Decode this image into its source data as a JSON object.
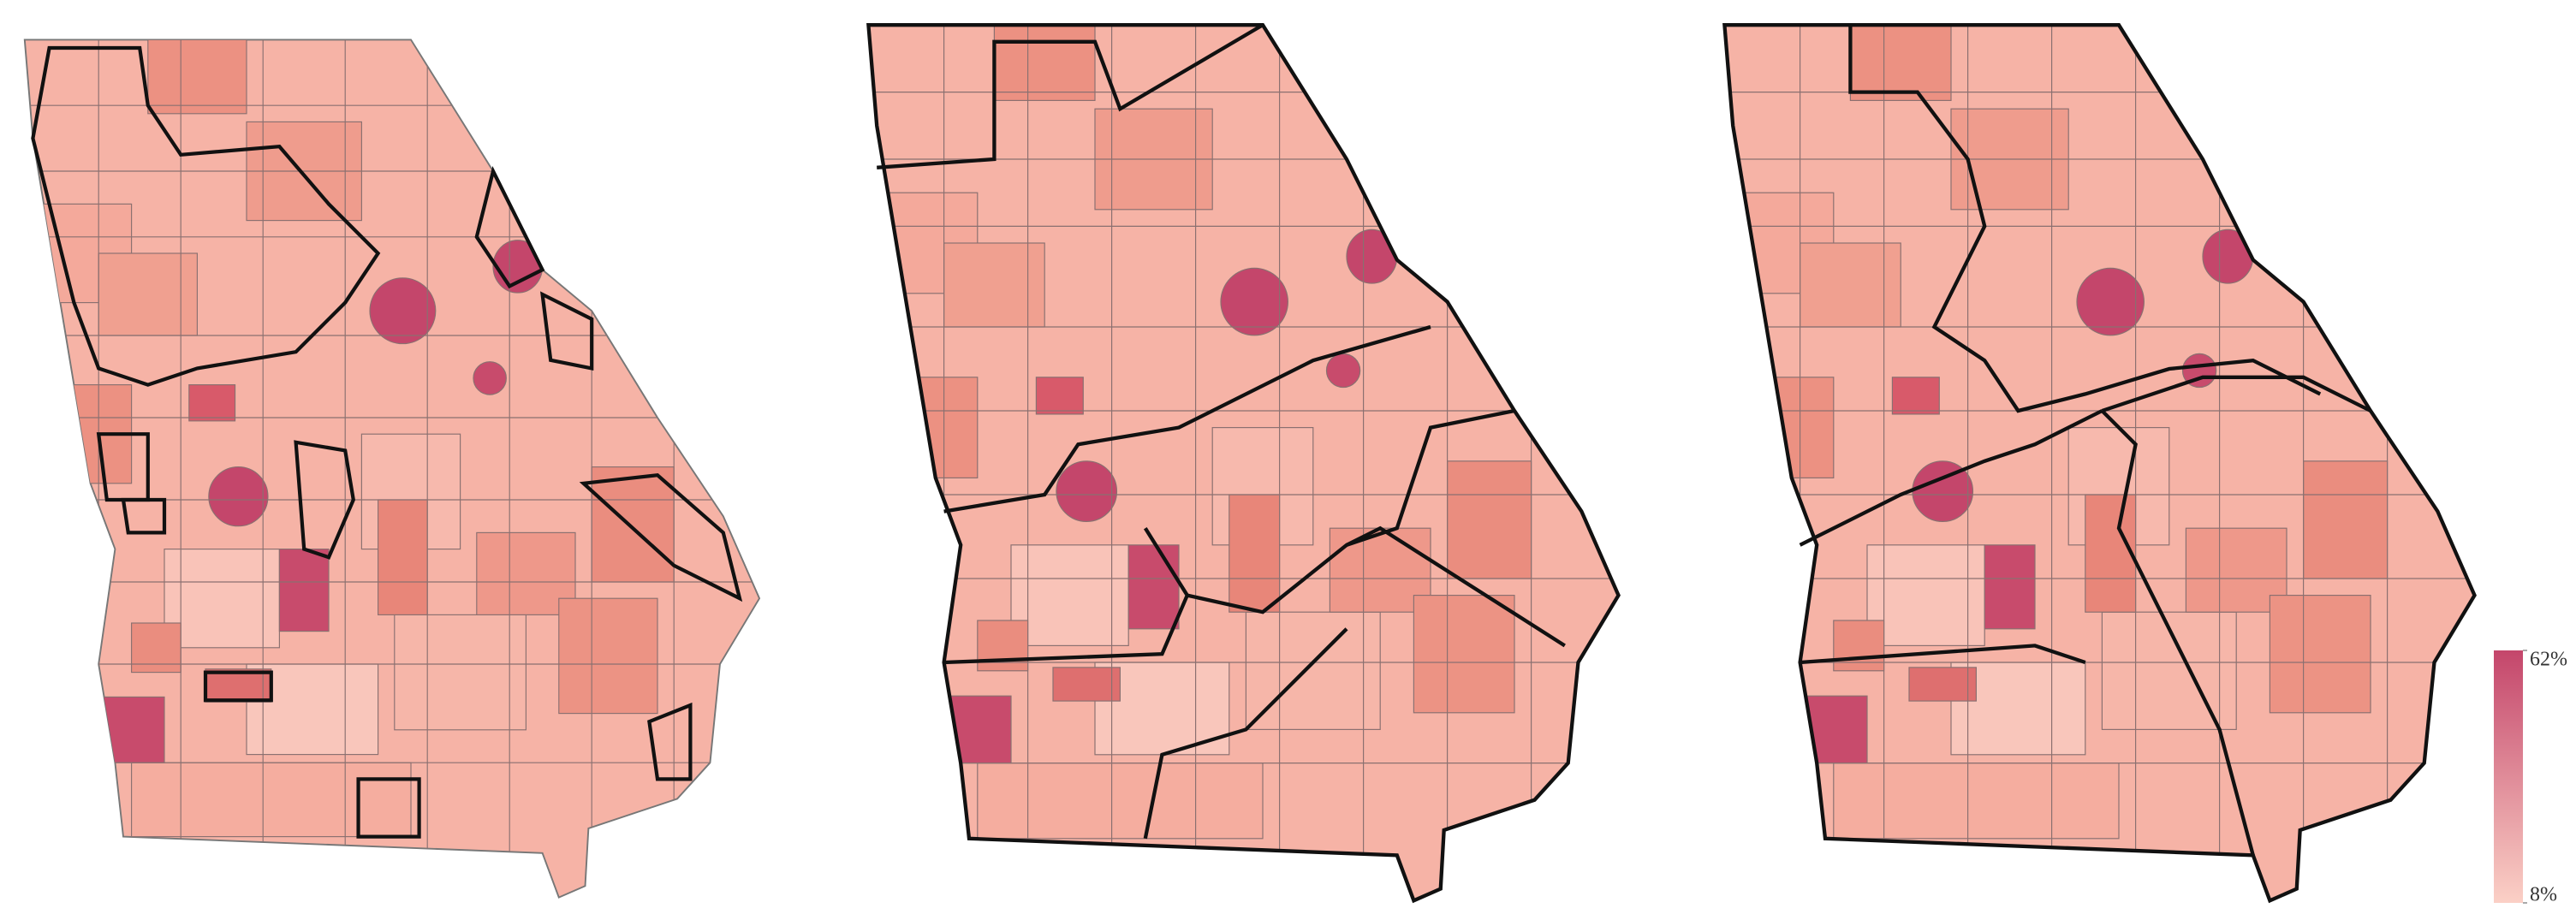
{
  "colorbar": {
    "lim": [
      8,
      62
    ],
    "colors": [
      "#fbd0c6",
      "#c4466b"
    ],
    "ticks": [
      {
        "value": 62,
        "label": "62%"
      },
      {
        "value": 8,
        "label": "8%"
      }
    ]
  }
}
